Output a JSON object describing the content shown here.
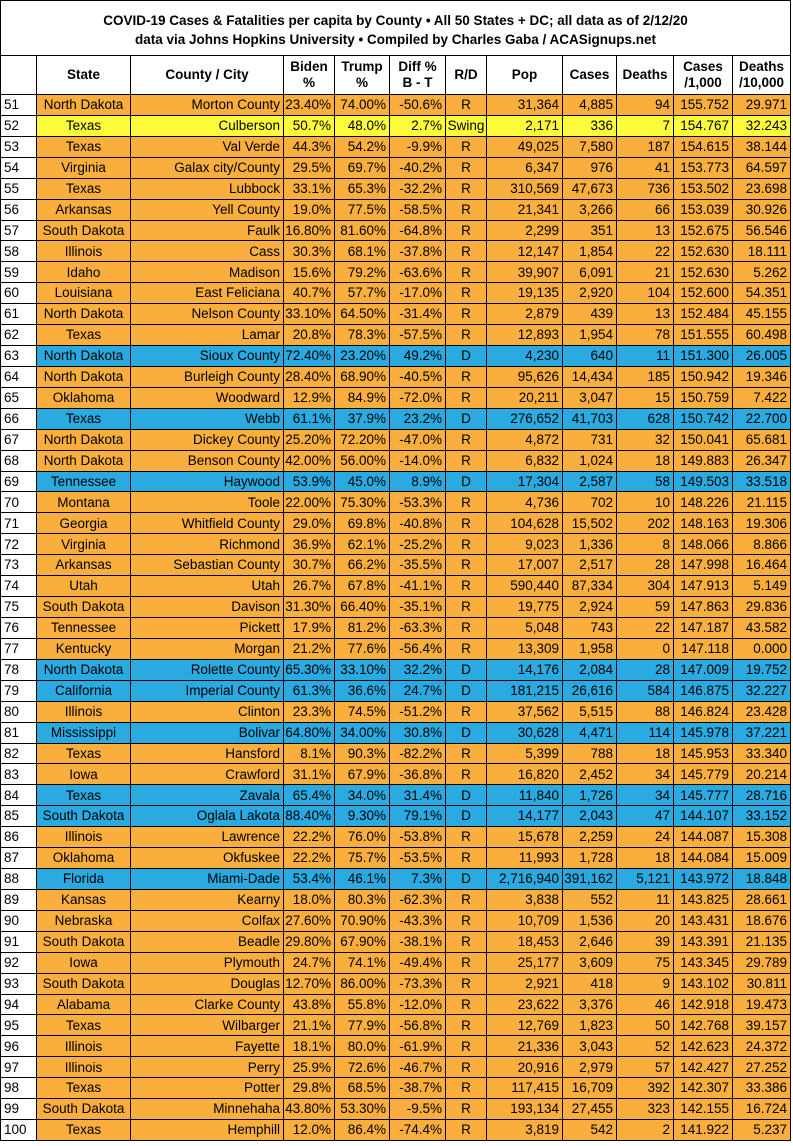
{
  "title": {
    "lines": [
      "COVID-19 Cases & Fatalities per capita by County • All 50 States + DC; all data as of 2/12/20",
      "data via Johns Hopkins University • Compiled by Charles Gaba / ACASignups.net"
    ]
  },
  "table": {
    "party_colors": {
      "R": "#f9ae3d",
      "D": "#2aaae0",
      "Swing": "#fcfc3c"
    },
    "headers": [
      [
        "State"
      ],
      [
        "County / City"
      ],
      [
        "Biden",
        "%"
      ],
      [
        "Trump",
        "%"
      ],
      [
        "Diff %",
        "B - T"
      ],
      [
        "R/D"
      ],
      [
        "Pop"
      ],
      [
        "Cases"
      ],
      [
        "Deaths"
      ],
      [
        "Cases",
        "/1,000"
      ],
      [
        "Deaths",
        "/10,000"
      ]
    ],
    "rows": [
      [
        "51",
        "North Dakota",
        "Morton County",
        "23.40%",
        "74.00%",
        "-50.6%",
        "R",
        "31,364",
        "4,885",
        "94",
        "155.752",
        "29.971"
      ],
      [
        "52",
        "Texas",
        "Culberson",
        "50.7%",
        "48.0%",
        "2.7%",
        "Swing",
        "2,171",
        "336",
        "7",
        "154.767",
        "32.243"
      ],
      [
        "53",
        "Texas",
        "Val Verde",
        "44.3%",
        "54.2%",
        "-9.9%",
        "R",
        "49,025",
        "7,580",
        "187",
        "154.615",
        "38.144"
      ],
      [
        "54",
        "Virginia",
        "Galax city/County",
        "29.5%",
        "69.7%",
        "-40.2%",
        "R",
        "6,347",
        "976",
        "41",
        "153.773",
        "64.597"
      ],
      [
        "55",
        "Texas",
        "Lubbock",
        "33.1%",
        "65.3%",
        "-32.2%",
        "R",
        "310,569",
        "47,673",
        "736",
        "153.502",
        "23.698"
      ],
      [
        "56",
        "Arkansas",
        "Yell County",
        "19.0%",
        "77.5%",
        "-58.5%",
        "R",
        "21,341",
        "3,266",
        "66",
        "153.039",
        "30.926"
      ],
      [
        "57",
        "South Dakota",
        "Faulk",
        "16.80%",
        "81.60%",
        "-64.8%",
        "R",
        "2,299",
        "351",
        "13",
        "152.675",
        "56.546"
      ],
      [
        "58",
        "Illinois",
        "Cass",
        "30.3%",
        "68.1%",
        "-37.8%",
        "R",
        "12,147",
        "1,854",
        "22",
        "152.630",
        "18.111"
      ],
      [
        "59",
        "Idaho",
        "Madison",
        "15.6%",
        "79.2%",
        "-63.6%",
        "R",
        "39,907",
        "6,091",
        "21",
        "152.630",
        "5.262"
      ],
      [
        "60",
        "Louisiana",
        "East Feliciana",
        "40.7%",
        "57.7%",
        "-17.0%",
        "R",
        "19,135",
        "2,920",
        "104",
        "152.600",
        "54.351"
      ],
      [
        "61",
        "North Dakota",
        "Nelson County",
        "33.10%",
        "64.50%",
        "-31.4%",
        "R",
        "2,879",
        "439",
        "13",
        "152.484",
        "45.155"
      ],
      [
        "62",
        "Texas",
        "Lamar",
        "20.8%",
        "78.3%",
        "-57.5%",
        "R",
        "12,893",
        "1,954",
        "78",
        "151.555",
        "60.498"
      ],
      [
        "63",
        "North Dakota",
        "Sioux County",
        "72.40%",
        "23.20%",
        "49.2%",
        "D",
        "4,230",
        "640",
        "11",
        "151.300",
        "26.005"
      ],
      [
        "64",
        "North Dakota",
        "Burleigh County",
        "28.40%",
        "68.90%",
        "-40.5%",
        "R",
        "95,626",
        "14,434",
        "185",
        "150.942",
        "19.346"
      ],
      [
        "65",
        "Oklahoma",
        "Woodward",
        "12.9%",
        "84.9%",
        "-72.0%",
        "R",
        "20,211",
        "3,047",
        "15",
        "150.759",
        "7.422"
      ],
      [
        "66",
        "Texas",
        "Webb",
        "61.1%",
        "37.9%",
        "23.2%",
        "D",
        "276,652",
        "41,703",
        "628",
        "150.742",
        "22.700"
      ],
      [
        "67",
        "North Dakota",
        "Dickey County",
        "25.20%",
        "72.20%",
        "-47.0%",
        "R",
        "4,872",
        "731",
        "32",
        "150.041",
        "65.681"
      ],
      [
        "68",
        "North Dakota",
        "Benson County",
        "42.00%",
        "56.00%",
        "-14.0%",
        "R",
        "6,832",
        "1,024",
        "18",
        "149.883",
        "26.347"
      ],
      [
        "69",
        "Tennessee",
        "Haywood",
        "53.9%",
        "45.0%",
        "8.9%",
        "D",
        "17,304",
        "2,587",
        "58",
        "149.503",
        "33.518"
      ],
      [
        "70",
        "Montana",
        "Toole",
        "22.00%",
        "75.30%",
        "-53.3%",
        "R",
        "4,736",
        "702",
        "10",
        "148.226",
        "21.115"
      ],
      [
        "71",
        "Georgia",
        "Whitfield County",
        "29.0%",
        "69.8%",
        "-40.8%",
        "R",
        "104,628",
        "15,502",
        "202",
        "148.163",
        "19.306"
      ],
      [
        "72",
        "Virginia",
        "Richmond",
        "36.9%",
        "62.1%",
        "-25.2%",
        "R",
        "9,023",
        "1,336",
        "8",
        "148.066",
        "8.866"
      ],
      [
        "73",
        "Arkansas",
        "Sebastian County",
        "30.7%",
        "66.2%",
        "-35.5%",
        "R",
        "17,007",
        "2,517",
        "28",
        "147.998",
        "16.464"
      ],
      [
        "74",
        "Utah",
        "Utah",
        "26.7%",
        "67.8%",
        "-41.1%",
        "R",
        "590,440",
        "87,334",
        "304",
        "147.913",
        "5.149"
      ],
      [
        "75",
        "South Dakota",
        "Davison",
        "31.30%",
        "66.40%",
        "-35.1%",
        "R",
        "19,775",
        "2,924",
        "59",
        "147.863",
        "29.836"
      ],
      [
        "76",
        "Tennessee",
        "Pickett",
        "17.9%",
        "81.2%",
        "-63.3%",
        "R",
        "5,048",
        "743",
        "22",
        "147.187",
        "43.582"
      ],
      [
        "77",
        "Kentucky",
        "Morgan",
        "21.2%",
        "77.6%",
        "-56.4%",
        "R",
        "13,309",
        "1,958",
        "0",
        "147.118",
        "0.000"
      ],
      [
        "78",
        "North Dakota",
        "Rolette County",
        "65.30%",
        "33.10%",
        "32.2%",
        "D",
        "14,176",
        "2,084",
        "28",
        "147.009",
        "19.752"
      ],
      [
        "79",
        "California",
        "Imperial County",
        "61.3%",
        "36.6%",
        "24.7%",
        "D",
        "181,215",
        "26,616",
        "584",
        "146.875",
        "32.227"
      ],
      [
        "80",
        "Illinois",
        "Clinton",
        "23.3%",
        "74.5%",
        "-51.2%",
        "R",
        "37,562",
        "5,515",
        "88",
        "146.824",
        "23.428"
      ],
      [
        "81",
        "Mississippi",
        "Bolivar",
        "64.80%",
        "34.00%",
        "30.8%",
        "D",
        "30,628",
        "4,471",
        "114",
        "145.978",
        "37.221"
      ],
      [
        "82",
        "Texas",
        "Hansford",
        "8.1%",
        "90.3%",
        "-82.2%",
        "R",
        "5,399",
        "788",
        "18",
        "145.953",
        "33.340"
      ],
      [
        "83",
        "Iowa",
        "Crawford",
        "31.1%",
        "67.9%",
        "-36.8%",
        "R",
        "16,820",
        "2,452",
        "34",
        "145.779",
        "20.214"
      ],
      [
        "84",
        "Texas",
        "Zavala",
        "65.4%",
        "34.0%",
        "31.4%",
        "D",
        "11,840",
        "1,726",
        "34",
        "145.777",
        "28.716"
      ],
      [
        "85",
        "South Dakota",
        "Oglala Lakota",
        "88.40%",
        "9.30%",
        "79.1%",
        "D",
        "14,177",
        "2,043",
        "47",
        "144.107",
        "33.152"
      ],
      [
        "86",
        "Illinois",
        "Lawrence",
        "22.2%",
        "76.0%",
        "-53.8%",
        "R",
        "15,678",
        "2,259",
        "24",
        "144.087",
        "15.308"
      ],
      [
        "87",
        "Oklahoma",
        "Okfuskee",
        "22.2%",
        "75.7%",
        "-53.5%",
        "R",
        "11,993",
        "1,728",
        "18",
        "144.084",
        "15.009"
      ],
      [
        "88",
        "Florida",
        "Miami-Dade",
        "53.4%",
        "46.1%",
        "7.3%",
        "D",
        "2,716,940",
        "391,162",
        "5,121",
        "143.972",
        "18.848"
      ],
      [
        "89",
        "Kansas",
        "Kearny",
        "18.0%",
        "80.3%",
        "-62.3%",
        "R",
        "3,838",
        "552",
        "11",
        "143.825",
        "28.661"
      ],
      [
        "90",
        "Nebraska",
        "Colfax",
        "27.60%",
        "70.90%",
        "-43.3%",
        "R",
        "10,709",
        "1,536",
        "20",
        "143.431",
        "18.676"
      ],
      [
        "91",
        "South Dakota",
        "Beadle",
        "29.80%",
        "67.90%",
        "-38.1%",
        "R",
        "18,453",
        "2,646",
        "39",
        "143.391",
        "21.135"
      ],
      [
        "92",
        "Iowa",
        "Plymouth",
        "24.7%",
        "74.1%",
        "-49.4%",
        "R",
        "25,177",
        "3,609",
        "75",
        "143.345",
        "29.789"
      ],
      [
        "93",
        "South Dakota",
        "Douglas",
        "12.70%",
        "86.00%",
        "-73.3%",
        "R",
        "2,921",
        "418",
        "9",
        "143.102",
        "30.811"
      ],
      [
        "94",
        "Alabama",
        "Clarke County",
        "43.8%",
        "55.8%",
        "-12.0%",
        "R",
        "23,622",
        "3,376",
        "46",
        "142.918",
        "19.473"
      ],
      [
        "95",
        "Texas",
        "Wilbarger",
        "21.1%",
        "77.9%",
        "-56.8%",
        "R",
        "12,769",
        "1,823",
        "50",
        "142.768",
        "39.157"
      ],
      [
        "96",
        "Illinois",
        "Fayette",
        "18.1%",
        "80.0%",
        "-61.9%",
        "R",
        "21,336",
        "3,043",
        "52",
        "142.623",
        "24.372"
      ],
      [
        "97",
        "Illinois",
        "Perry",
        "25.9%",
        "72.6%",
        "-46.7%",
        "R",
        "20,916",
        "2,979",
        "57",
        "142.427",
        "27.252"
      ],
      [
        "98",
        "Texas",
        "Potter",
        "29.8%",
        "68.5%",
        "-38.7%",
        "R",
        "117,415",
        "16,709",
        "392",
        "142.307",
        "33.386"
      ],
      [
        "99",
        "South Dakota",
        "Minnehaha",
        "43.80%",
        "53.30%",
        "-9.5%",
        "R",
        "193,134",
        "27,455",
        "323",
        "142.155",
        "16.724"
      ],
      [
        "100",
        "Texas",
        "Hemphill",
        "12.0%",
        "86.4%",
        "-74.4%",
        "R",
        "3,819",
        "542",
        "2",
        "141.922",
        "5.237"
      ]
    ]
  }
}
